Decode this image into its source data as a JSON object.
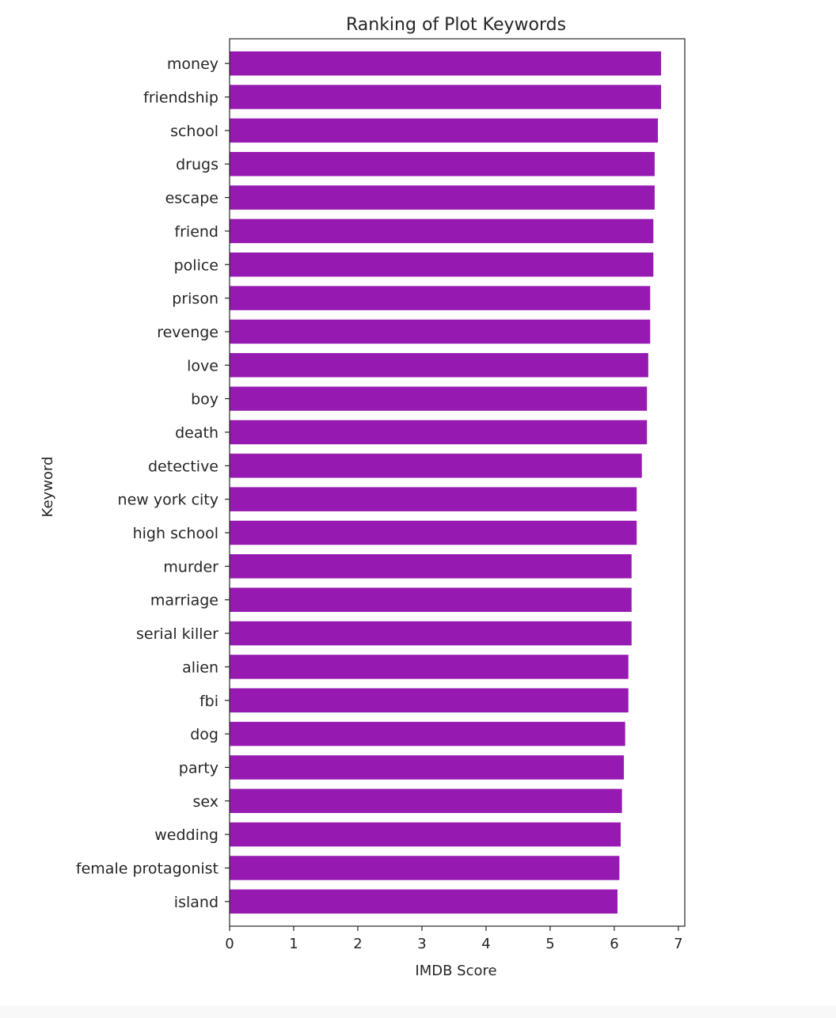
{
  "chart_data": {
    "type": "bar",
    "orientation": "horizontal",
    "title": "Ranking of Plot Keywords",
    "xlabel": "IMDB Score",
    "ylabel": "Keyword",
    "xlim": [
      0,
      7.1
    ],
    "xticks": [
      "0",
      "1",
      "2",
      "3",
      "4",
      "5",
      "6",
      "7"
    ],
    "grid": false,
    "bar_color": "#9619b1",
    "categories": [
      "money",
      "friendship",
      "school",
      "drugs",
      "escape",
      "friend",
      "police",
      "prison",
      "revenge",
      "love",
      "boy",
      "death",
      "detective",
      "new york city",
      "high school",
      "murder",
      "marriage",
      "serial killer",
      "alien",
      "fbi",
      "dog",
      "party",
      "sex",
      "wedding",
      "female protagonist",
      "island"
    ],
    "values": [
      6.73,
      6.73,
      6.68,
      6.63,
      6.63,
      6.61,
      6.61,
      6.56,
      6.56,
      6.53,
      6.51,
      6.51,
      6.43,
      6.35,
      6.35,
      6.27,
      6.27,
      6.27,
      6.22,
      6.22,
      6.17,
      6.15,
      6.12,
      6.1,
      6.08,
      6.05
    ]
  }
}
